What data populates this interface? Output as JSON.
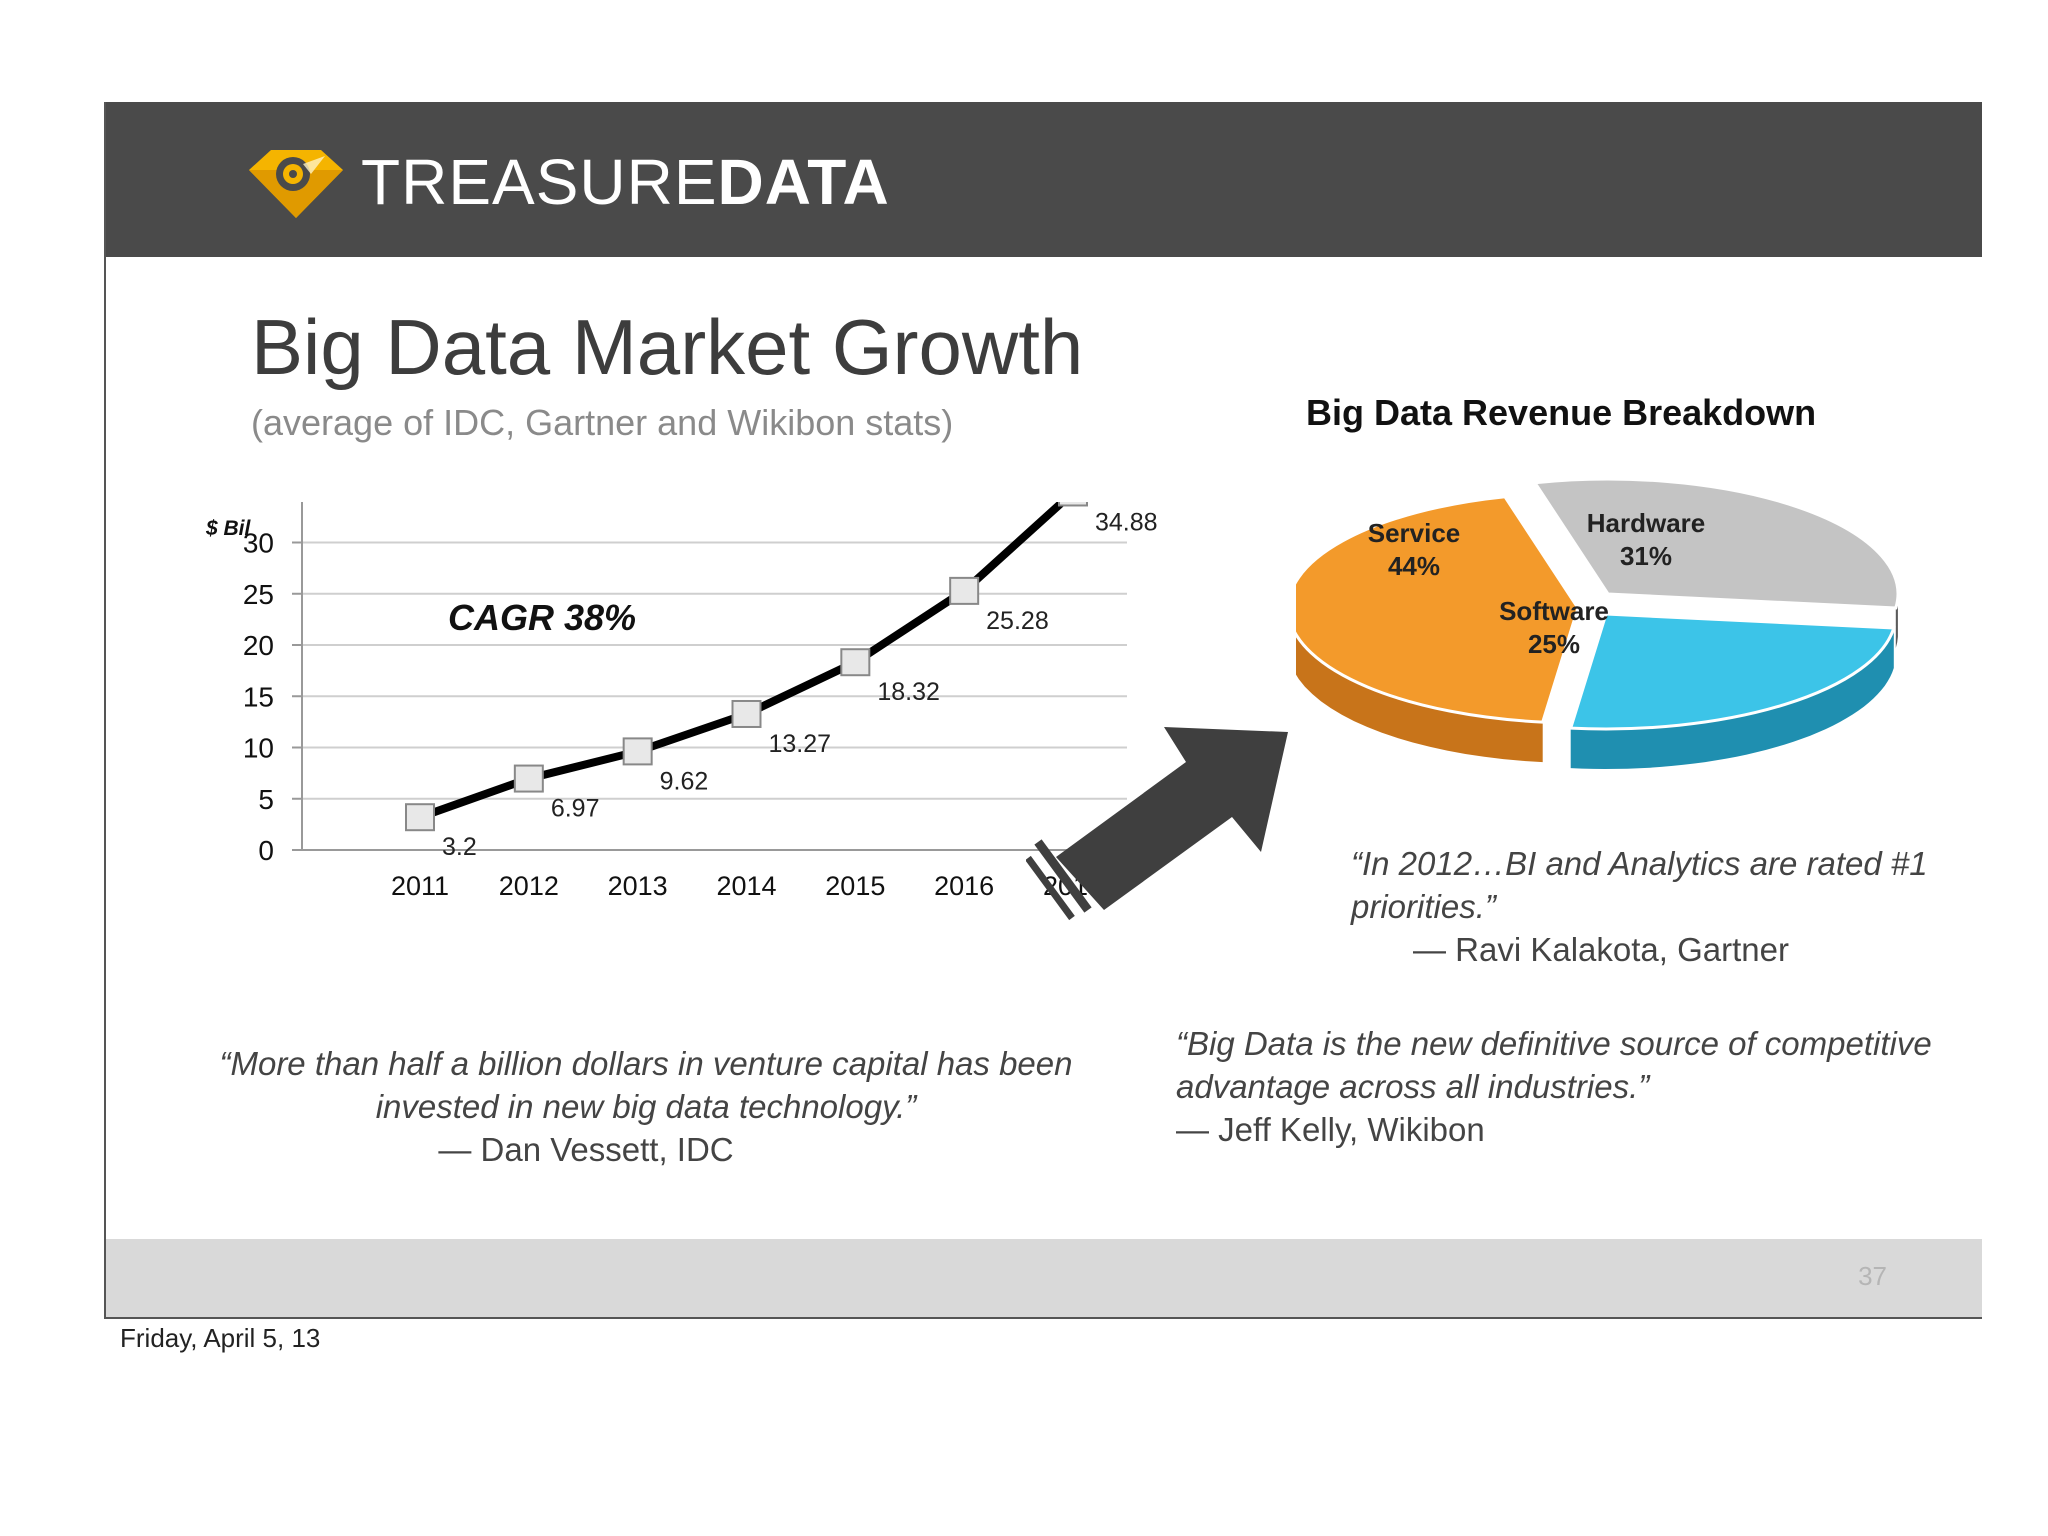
{
  "header": {
    "logo_icon": "treasure-gem-icon",
    "brand_light": "TREASURE",
    "brand_bold": "DATA",
    "bar_color": "#4a4a4a",
    "logo_color": "#f5b400"
  },
  "slide": {
    "title": "Big Data Market Growth",
    "subtitle": "(average of IDC, Gartner and Wikibon stats)"
  },
  "chart_data": [
    {
      "type": "line",
      "ylabel": "$ Bil",
      "annotation": "CAGR 38%",
      "categories": [
        "2011",
        "2012",
        "2013",
        "2014",
        "2015",
        "2016",
        "2017"
      ],
      "values": [
        3.2,
        6.97,
        9.62,
        13.27,
        18.32,
        25.28,
        34.88
      ],
      "data_labels": [
        "3.2",
        "6.97",
        "9.62",
        "13.27",
        "18.32",
        "25.28",
        "34.88"
      ],
      "ylim": [
        0,
        40
      ],
      "yticks": [
        0,
        5,
        10,
        15,
        20,
        25,
        30,
        35,
        40
      ],
      "grid": true,
      "line_color": "#000000"
    },
    {
      "type": "pie",
      "title": "Big Data Revenue Breakdown",
      "slices": [
        {
          "label": "Service",
          "value": 44,
          "value_label": "44%",
          "color": "#f39a2b"
        },
        {
          "label": "Hardware",
          "value": 31,
          "value_label": "31%",
          "color": "#c4c4c4"
        },
        {
          "label": "Software",
          "value": 25,
          "value_label": "25%",
          "color": "#3cc4e8"
        }
      ]
    }
  ],
  "quotes": {
    "kalakota": {
      "text": "“In 2012…BI and Analytics are rated #1  priorities.”",
      "author": "— Ravi Kalakota, Gartner"
    },
    "vessett": {
      "text": "“More than half a billion dollars in venture capital has been invested in new big data technology.”",
      "author": "— Dan Vessett, IDC"
    },
    "kelly": {
      "text": "“Big Data is the new definitive source of competitive advantage across all industries.”",
      "author": "— Jeff Kelly, Wikibon"
    }
  },
  "decor": {
    "arrow_icon": "arrow-right-icon",
    "arrow_color": "#3f3f3f"
  },
  "footer": {
    "page_number": "37",
    "bar_color": "#d9d9d9"
  },
  "date": "Friday, April 5, 13"
}
